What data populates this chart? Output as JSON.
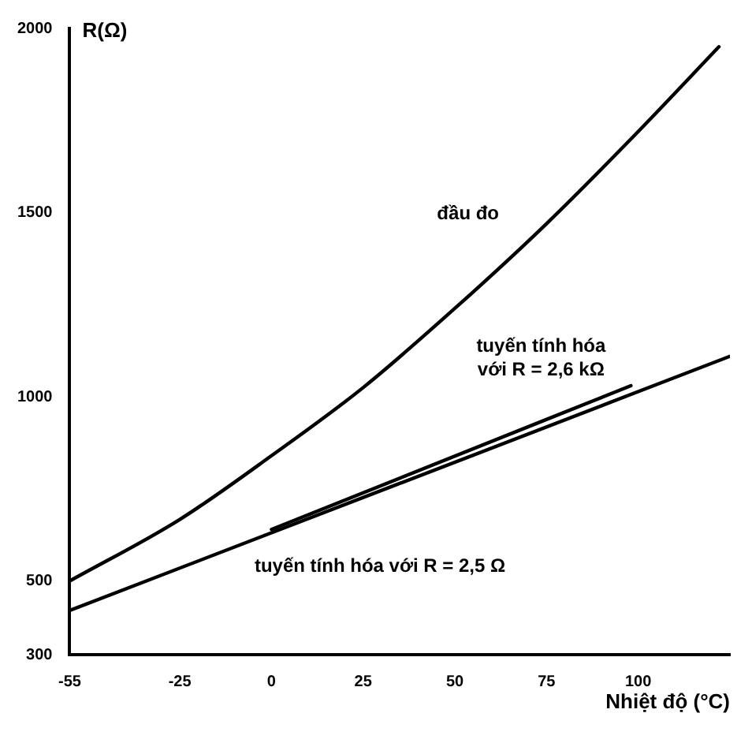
{
  "chart_data": {
    "type": "line",
    "xlabel": "Nhiệt độ (°C)",
    "ylabel": "R(Ω)",
    "xlim": [
      -55,
      125
    ],
    "xticks": [
      -55,
      -25,
      0,
      25,
      50,
      75,
      100
    ],
    "ylim": [
      300,
      2000
    ],
    "yticks": [
      300,
      500,
      1000,
      1500,
      2000
    ],
    "grid": false,
    "legend": false,
    "marker": "none",
    "line_style": "solid",
    "series": [
      {
        "name": "đầu đo",
        "color": "#000000",
        "x": [
          -55,
          -25,
          0,
          25,
          50,
          75,
          100,
          122
        ],
        "values": [
          500,
          667,
          840,
          1025,
          1240,
          1470,
          1720,
          1950
        ]
      },
      {
        "name": "tuyến tính hóa với R = 2,6 kΩ",
        "color": "#000000",
        "x": [
          0,
          98
        ],
        "values": [
          640,
          1030
        ]
      },
      {
        "name": "tuyến tính hóa với R = 2,5 Ω",
        "color": "#000000",
        "x": [
          -55,
          125
        ],
        "values": [
          420,
          1110
        ]
      }
    ]
  }
}
